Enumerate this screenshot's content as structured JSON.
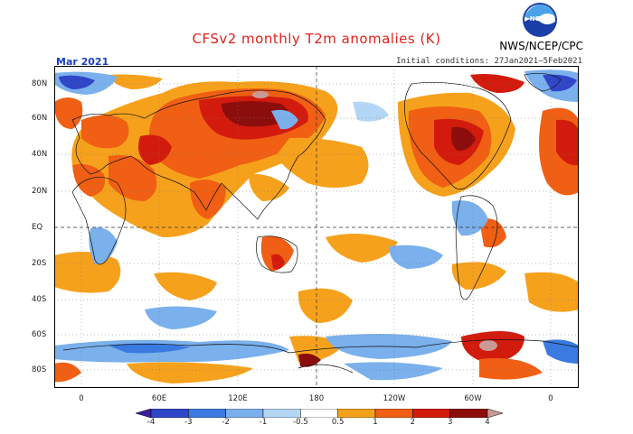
{
  "title": "CFSv2 monthly T2m anomalies (K)",
  "agency": "NWS/NCEP/CPC",
  "logo_text": "NOAA",
  "month": "Mar 2021",
  "initial_conditions": "Initial conditions: 27Jan2021–5Feb2021",
  "lat_labels": [
    "80N",
    "60N",
    "40N",
    "20N",
    "EQ",
    "20S",
    "40S",
    "60S",
    "80S"
  ],
  "lon_labels": [
    "0",
    "60E",
    "120E",
    "180",
    "120W",
    "60W",
    "0"
  ],
  "colorbar": {
    "labels": [
      "-4",
      "-3",
      "-2",
      "-1",
      "-0.5",
      "0.5",
      "1",
      "2",
      "3",
      "4"
    ],
    "colors": [
      "#3d1e9e",
      "#2f46c8",
      "#3b7ae0",
      "#7ab0ec",
      "#b4d6f5",
      "#ffffff",
      "#f6a11c",
      "#f05f13",
      "#d21b0d",
      "#8c0e0c",
      "#c99a95"
    ]
  },
  "palette": {
    "warm_light": "#f6a11c",
    "warm_mid": "#f05f13",
    "warm_strong": "#d21b0d",
    "warm_extreme": "#8c0e0c",
    "warm_peak": "#c99a95",
    "cool_light": "#7ab0ec",
    "cool_mid": "#3b7ae0",
    "cool_strong": "#2f46c8"
  }
}
